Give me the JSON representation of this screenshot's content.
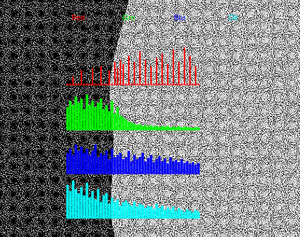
{
  "chart_data": {
    "type": "bar",
    "categories": [
      null,
      null,
      null,
      null,
      null,
      null,
      null,
      null,
      null,
      null,
      null,
      null,
      null,
      null,
      null,
      null,
      null,
      null,
      null,
      null,
      null,
      null,
      null,
      null,
      null,
      null,
      null,
      null,
      null,
      null,
      null,
      null,
      null,
      null,
      null,
      null,
      null,
      null,
      null,
      null,
      null,
      null,
      null,
      null,
      null,
      null,
      null,
      null
    ],
    "ylim": [
      0,
      100
    ],
    "tick_labels": false,
    "series": [
      {
        "name": "Red",
        "color": "#ff0000",
        "values": [
          3,
          3,
          20,
          3,
          3,
          35,
          3,
          3,
          3,
          40,
          3,
          3,
          45,
          3,
          3,
          35,
          3,
          55,
          40,
          60,
          50,
          3,
          70,
          3,
          55,
          3,
          80,
          3,
          60,
          3,
          45,
          3,
          65,
          3,
          75,
          3,
          50,
          3,
          85,
          3,
          55,
          3,
          90,
          3,
          70,
          3,
          45,
          3
        ]
      },
      {
        "name": "Grn",
        "color": "#00ff00",
        "values": [
          55,
          70,
          60,
          80,
          65,
          75,
          50,
          85,
          60,
          70,
          55,
          65,
          75,
          50,
          60,
          45,
          70,
          40,
          55,
          35,
          30,
          25,
          20,
          18,
          15,
          12,
          14,
          10,
          12,
          9,
          11,
          8,
          10,
          7,
          9,
          8,
          10,
          6,
          8,
          7,
          9,
          6,
          8,
          7,
          6,
          5,
          7,
          6
        ]
      },
      {
        "name": "Blu",
        "color": "#0000ff",
        "values": [
          50,
          60,
          45,
          70,
          55,
          65,
          50,
          60,
          45,
          55,
          70,
          40,
          50,
          45,
          55,
          35,
          60,
          40,
          45,
          50,
          35,
          40,
          55,
          30,
          45,
          35,
          40,
          50,
          30,
          38,
          45,
          28,
          35,
          42,
          30,
          36,
          25,
          40,
          30,
          33,
          28,
          35,
          26,
          30,
          24,
          28,
          22,
          26
        ]
      },
      {
        "name": "Dk",
        "color": "#00ffff",
        "values": [
          80,
          65,
          90,
          70,
          60,
          75,
          55,
          85,
          50,
          65,
          45,
          70,
          40,
          55,
          60,
          35,
          50,
          40,
          45,
          30,
          38,
          42,
          35,
          30,
          40,
          28,
          35,
          32,
          25,
          30,
          28,
          22,
          35,
          25,
          30,
          20,
          26,
          22,
          28,
          18,
          24,
          20,
          15,
          22,
          18,
          14,
          20,
          16
        ]
      }
    ]
  }
}
